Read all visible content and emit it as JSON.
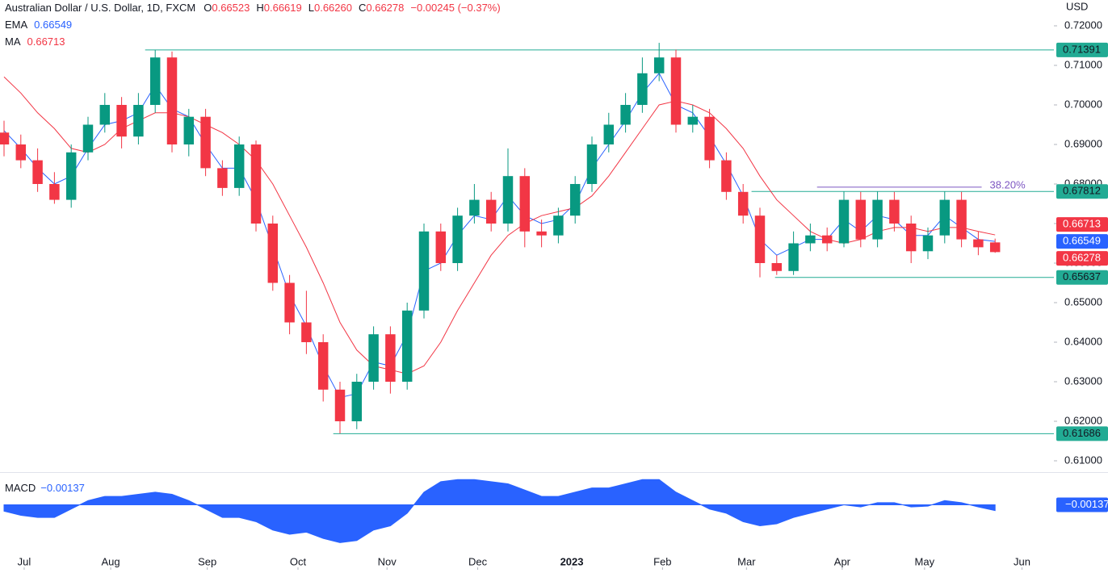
{
  "chart_data": {
    "type": "candlestick",
    "title": "Australian Dollar / U.S. Dollar, 1D, FXCM",
    "ohlc_header": [
      {
        "label": "O",
        "text": "0.66523"
      },
      {
        "label": "H",
        "text": "0.66619"
      },
      {
        "label": "L",
        "text": "0.66260"
      },
      {
        "label": "C",
        "text": "0.66278"
      }
    ],
    "change_label": "−0.00245 (−0.37%)",
    "currency": "USD",
    "up_color": "#089981",
    "down_color": "#f23645",
    "xlim": [
      -0.24,
      62.26
    ],
    "xticks": [
      {
        "value": 1.2,
        "label": "Jul"
      },
      {
        "value": 6.35,
        "label": "Aug"
      },
      {
        "value": 12.1,
        "label": "Sep"
      },
      {
        "value": 17.5,
        "label": "Oct"
      },
      {
        "value": 22.8,
        "label": "Nov"
      },
      {
        "value": 28.2,
        "label": "Dec"
      },
      {
        "value": 33.8,
        "label": "2023"
      },
      {
        "value": 39.2,
        "label": "Feb"
      },
      {
        "value": 44.2,
        "label": "Mar"
      },
      {
        "value": 49.9,
        "label": "Apr"
      },
      {
        "value": 54.8,
        "label": "May"
      },
      {
        "value": 60.6,
        "label": "Jun"
      }
    ],
    "ylim": [
      0.60714,
      0.72653
    ],
    "yticks": [
      {
        "value": 0.61,
        "label": "0.61000"
      },
      {
        "value": 0.62,
        "label": "0.62000"
      },
      {
        "value": 0.63,
        "label": "0.63000"
      },
      {
        "value": 0.64,
        "label": "0.64000"
      },
      {
        "value": 0.65,
        "label": "0.65000"
      },
      {
        "value": 0.66,
        "label": "0.66000"
      },
      {
        "value": 0.67,
        "label": "0.67000"
      },
      {
        "value": 0.68,
        "label": "0.68000"
      },
      {
        "value": 0.69,
        "label": "0.69000"
      },
      {
        "value": 0.7,
        "label": "0.70000"
      },
      {
        "value": 0.71,
        "label": "0.71000"
      },
      {
        "value": 0.72,
        "label": "0.72000"
      }
    ],
    "ohlc": [
      [
        0.693,
        0.696,
        0.687,
        0.69
      ],
      [
        0.69,
        0.6925,
        0.684,
        0.686
      ],
      [
        0.686,
        0.689,
        0.678,
        0.68
      ],
      [
        0.68,
        0.683,
        0.675,
        0.676
      ],
      [
        0.676,
        0.69,
        0.674,
        0.688
      ],
      [
        0.688,
        0.697,
        0.686,
        0.695
      ],
      [
        0.695,
        0.703,
        0.693,
        0.7
      ],
      [
        0.7,
        0.702,
        0.689,
        0.692
      ],
      [
        0.692,
        0.703,
        0.69,
        0.7
      ],
      [
        0.7,
        0.7139,
        0.698,
        0.712
      ],
      [
        0.712,
        0.7135,
        0.688,
        0.69
      ],
      [
        0.69,
        0.699,
        0.687,
        0.697
      ],
      [
        0.697,
        0.699,
        0.682,
        0.684
      ],
      [
        0.684,
        0.686,
        0.677,
        0.679
      ],
      [
        0.679,
        0.692,
        0.677,
        0.69
      ],
      [
        0.69,
        0.691,
        0.668,
        0.67
      ],
      [
        0.67,
        0.672,
        0.653,
        0.655
      ],
      [
        0.655,
        0.657,
        0.642,
        0.645
      ],
      [
        0.645,
        0.653,
        0.637,
        0.64
      ],
      [
        0.64,
        0.642,
        0.625,
        0.628
      ],
      [
        0.628,
        0.63,
        0.6169,
        0.62
      ],
      [
        0.62,
        0.632,
        0.618,
        0.63
      ],
      [
        0.63,
        0.644,
        0.628,
        0.642
      ],
      [
        0.642,
        0.644,
        0.627,
        0.63
      ],
      [
        0.63,
        0.65,
        0.628,
        0.648
      ],
      [
        0.648,
        0.67,
        0.646,
        0.668
      ],
      [
        0.668,
        0.67,
        0.658,
        0.66
      ],
      [
        0.66,
        0.674,
        0.658,
        0.672
      ],
      [
        0.672,
        0.68,
        0.67,
        0.676
      ],
      [
        0.676,
        0.678,
        0.668,
        0.67
      ],
      [
        0.67,
        0.689,
        0.668,
        0.682
      ],
      [
        0.682,
        0.684,
        0.664,
        0.668
      ],
      [
        0.668,
        0.671,
        0.664,
        0.667
      ],
      [
        0.667,
        0.674,
        0.665,
        0.672
      ],
      [
        0.672,
        0.682,
        0.67,
        0.68
      ],
      [
        0.68,
        0.692,
        0.678,
        0.69
      ],
      [
        0.69,
        0.698,
        0.688,
        0.695
      ],
      [
        0.695,
        0.703,
        0.693,
        0.7
      ],
      [
        0.7,
        0.712,
        0.698,
        0.708
      ],
      [
        0.708,
        0.7157,
        0.706,
        0.712
      ],
      [
        0.712,
        0.714,
        0.693,
        0.695
      ],
      [
        0.695,
        0.7,
        0.693,
        0.697
      ],
      [
        0.697,
        0.699,
        0.684,
        0.686
      ],
      [
        0.686,
        0.688,
        0.676,
        0.678
      ],
      [
        0.678,
        0.68,
        0.67,
        0.672
      ],
      [
        0.672,
        0.674,
        0.6564,
        0.66
      ],
      [
        0.66,
        0.662,
        0.657,
        0.658
      ],
      [
        0.658,
        0.668,
        0.657,
        0.665
      ],
      [
        0.665,
        0.67,
        0.663,
        0.667
      ],
      [
        0.667,
        0.669,
        0.663,
        0.665
      ],
      [
        0.665,
        0.6781,
        0.664,
        0.676
      ],
      [
        0.676,
        0.678,
        0.664,
        0.666
      ],
      [
        0.666,
        0.6781,
        0.664,
        0.676
      ],
      [
        0.676,
        0.678,
        0.668,
        0.67
      ],
      [
        0.67,
        0.672,
        0.66,
        0.663
      ],
      [
        0.663,
        0.669,
        0.661,
        0.667
      ],
      [
        0.667,
        0.6781,
        0.665,
        0.676
      ],
      [
        0.676,
        0.678,
        0.664,
        0.666
      ],
      [
        0.666,
        0.668,
        0.662,
        0.664
      ],
      [
        0.66523,
        0.66619,
        0.6626,
        0.66278
      ]
    ],
    "lines": [
      {
        "name": "EMA",
        "color": "#2962ff",
        "label_color": "#2962ff",
        "values": [
          0.6935,
          0.689,
          0.684,
          0.68,
          0.682,
          0.689,
          0.695,
          0.696,
          0.698,
          0.705,
          0.699,
          0.697,
          0.69,
          0.684,
          0.684,
          0.676,
          0.664,
          0.652,
          0.644,
          0.634,
          0.626,
          0.627,
          0.635,
          0.634,
          0.642,
          0.658,
          0.66,
          0.667,
          0.672,
          0.671,
          0.677,
          0.672,
          0.67,
          0.671,
          0.675,
          0.684,
          0.69,
          0.696,
          0.703,
          0.708,
          0.7,
          0.698,
          0.692,
          0.685,
          0.677,
          0.666,
          0.662,
          0.664,
          0.666,
          0.666,
          0.671,
          0.668,
          0.672,
          0.671,
          0.667,
          0.667,
          0.672,
          0.669,
          0.666,
          0.66549
        ]
      },
      {
        "name": "MA",
        "color": "#f23645",
        "label_color": "#f23645",
        "values": [
          0.7071,
          0.703,
          0.698,
          0.694,
          0.689,
          0.688,
          0.69,
          0.694,
          0.696,
          0.698,
          0.698,
          0.697,
          0.695,
          0.693,
          0.69,
          0.686,
          0.68,
          0.672,
          0.664,
          0.655,
          0.645,
          0.638,
          0.634,
          0.633,
          0.632,
          0.634,
          0.64,
          0.648,
          0.655,
          0.662,
          0.667,
          0.67,
          0.672,
          0.673,
          0.674,
          0.677,
          0.682,
          0.688,
          0.694,
          0.7,
          0.701,
          0.7,
          0.698,
          0.694,
          0.689,
          0.682,
          0.676,
          0.672,
          0.668,
          0.666,
          0.665,
          0.666,
          0.668,
          0.669,
          0.669,
          0.668,
          0.669,
          0.669,
          0.668,
          0.66713
        ]
      }
    ],
    "levels": [
      {
        "value": 0.71391,
        "start": 8.4
      },
      {
        "value": 0.67812,
        "start": 44.5
      },
      {
        "value": 0.65637,
        "start": 45.9
      },
      {
        "value": 0.61686,
        "start": 19.6
      }
    ],
    "level_color": "#22ab94",
    "fib": {
      "label": "38.20%",
      "value": 0.6792,
      "start": 48.4,
      "end": 58.2,
      "color": "#7e57c2"
    },
    "macd": {
      "name": "MACD",
      "last_label": "−0.00137",
      "color": "#2962ff",
      "ylim": [
        -0.0143,
        0.0072
      ],
      "values": [
        -0.0015,
        -0.0025,
        -0.003,
        -0.003,
        -0.001,
        0.001,
        0.002,
        0.002,
        0.0025,
        0.003,
        0.0025,
        0.001,
        -0.001,
        -0.003,
        -0.003,
        -0.004,
        -0.006,
        -0.007,
        -0.0065,
        -0.008,
        -0.009,
        -0.0085,
        -0.006,
        -0.005,
        -0.002,
        0.003,
        0.0055,
        0.006,
        0.006,
        0.0055,
        0.005,
        0.0035,
        0.002,
        0.002,
        0.003,
        0.004,
        0.004,
        0.005,
        0.006,
        0.006,
        0.003,
        0.001,
        -0.001,
        -0.002,
        -0.004,
        -0.005,
        -0.0045,
        -0.003,
        -0.002,
        -0.001,
        0,
        -0.0005,
        0.0005,
        0.0005,
        -0.0005,
        -0.0003,
        0.001,
        0.0005,
        -0.0005,
        -0.00137
      ]
    }
  }
}
